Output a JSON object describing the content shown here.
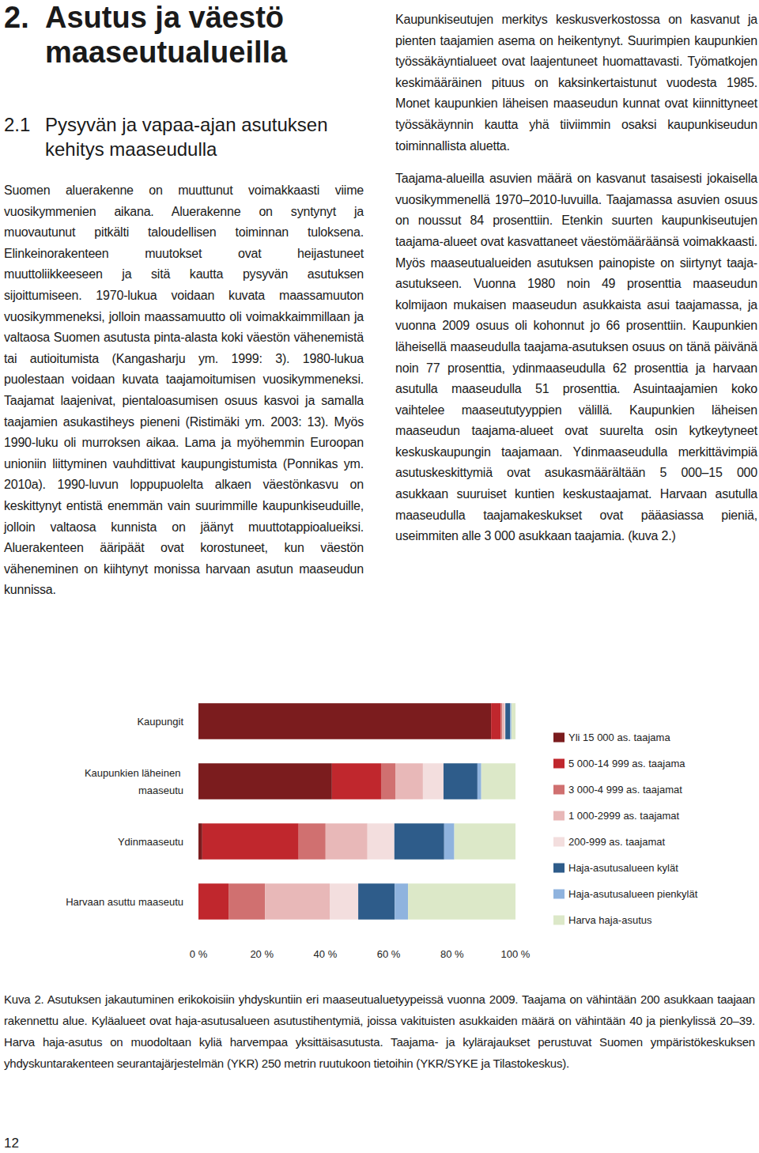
{
  "heading": {
    "number": "2.",
    "title": "Asutus ja väestö maaseutualueilla"
  },
  "section": {
    "number": "2.1",
    "title": "Pysyvän ja vapaa-ajan asutuksen kehitys maaseudulla"
  },
  "columns": [
    [
      "Suomen aluerakenne on muuttunut voimakkaasti viime vuosikymmenien aikana. Aluerakenne on syntynyt ja muovautunut pitkälti taloudellisen toiminnan tuloksena. Elinkeinorakenteen muutokset ovat heijastuneet muuttoliikkeeseen ja sitä kautta pysyvän asutuksen sijoittumiseen. 1970-lukua voidaan kuvata maassamuuton vuosikymmeneksi, jolloin maassamuutto oli voimakkaimmillaan ja valtaosa Suomen asutusta pinta-alasta koki väestön vähenemistä tai autioitumista (Kangasharju ym. 1999: 3). 1980-lukua puolestaan voidaan kuvata taajamoitumisen vuosikymmeneksi. Taajamat laajenivat, pientaloasumisen osuus kasvoi ja samalla taajamien asukastiheys pieneni (Ristimäki ym. 2003: 13). Myös 1990-luku oli murroksen aikaa. Lama ja myöhemmin Euroopan unioniin liittyminen vauhdittivat kaupungistumista (Ponnikas ym. 2010a). 1990-luvun loppupuolelta alkaen väestönkasvu on keskittynyt entistä enemmän vain suurimmille kaupunkiseuduille, jolloin valtaosa kunnista on jäänyt muuttotappioalueiksi. Aluerakenteen ääripäät ovat korostuneet, kun väestön väheneminen on kiihtynyt monissa harvaan asutun maaseudun kunnissa."
    ],
    [
      "Kaupunkiseutujen merkitys keskusverkostossa on kasvanut ja pienten taajamien asema on heikentynyt. Suurimpien kaupunkien työssäkäyntialueet ovat laajentuneet huomattavasti. Työmatkojen keskimääräinen pituus on kaksinkertaistunut vuodesta 1985. Monet kaupunkien läheisen maaseudun kunnat ovat kiinnittyneet työssäkäynnin kautta yhä tiiviimmin osaksi kaupunkiseudun toiminnallista aluetta.",
      "Taajama-alueilla asuvien määrä on kasvanut tasaisesti jokaisella vuosikymmenellä 1970–2010-luvuilla. Taajamassa asuvien osuus on noussut 84 prosenttiin. Etenkin suurten kaupunkiseutujen taajama-alueet ovat kasvattaneet väestömääräänsä voimakkaasti. Myös maaseutualueiden asutuksen painopiste on siirtynyt taaja-asutukseen. Vuonna 1980 noin 49 prosenttia maaseudun kolmijaon mukaisen maaseudun asukkaista asui taajamassa, ja vuonna 2009 osuus oli kohonnut jo 66 prosenttiin. Kaupunkien läheisellä maaseudulla taajama-asutuksen osuus on tänä päivänä noin 77 prosenttia, ydinmaaseudulla 62 prosenttia ja harvaan asutulla maaseudulla 51 prosenttia. Asuintaajamien koko vaihtelee maaseututyyppien välillä. Kaupunkien läheisen maaseudun taajama-alueet ovat suurelta osin kytkeytyneet keskuskaupungin taajamaan. Ydinmaaseudulla merkittävimpiä asutuskeskittymiä ovat asukasmäärältään 5 000–15 000 asukkaan suuruiset kuntien keskustaajamat. Harvaan asutulla maaseudulla taajamakeskukset ovat pääasiassa pieniä, useimmiten alle 3 000 asukkaan taajamia. (kuva 2.)"
    ]
  ],
  "chart_data": {
    "type": "bar",
    "orientation": "horizontal",
    "stacked": true,
    "grid": false,
    "legend": "right",
    "categories": [
      "Kaupungit",
      "Kaupunkien läheinen maaseutu",
      "Ydinmaaseutu",
      "Harvaan asuttu maaseutu"
    ],
    "xlim": [
      0,
      100
    ],
    "xticks": [
      {
        "value": 0,
        "label": "0 %"
      },
      {
        "value": 20,
        "label": "20 %"
      },
      {
        "value": 40,
        "label": "40 %"
      },
      {
        "value": 60,
        "label": "60 %"
      },
      {
        "value": 80,
        "label": "80 %"
      },
      {
        "value": 100,
        "label": "100 %"
      }
    ],
    "series": [
      {
        "name": "Yli 15 000 as. taajama",
        "color": "#7b1c1e",
        "values": [
          92.3,
          42.1,
          1.2,
          0
        ]
      },
      {
        "name": "5 000-14 999 as. taajama",
        "color": "#c0272d",
        "values": [
          3.0,
          15.5,
          30.4,
          9.5
        ]
      },
      {
        "name": "3 000-4 999 as. taajamat",
        "color": "#d07070",
        "values": [
          0.5,
          4.5,
          8.5,
          11.5
        ]
      },
      {
        "name": "1 000-2999 as. taajamat",
        "color": "#e8b8b8",
        "values": [
          0.7,
          8.7,
          13.2,
          20.4
        ]
      },
      {
        "name": "200-999 as. taajamat",
        "color": "#f3dede",
        "values": [
          0.3,
          6.5,
          8.5,
          9.0
        ]
      },
      {
        "name": "Haja-asutusalueen kylät",
        "color": "#2e5c8a",
        "values": [
          1.5,
          10.7,
          15.7,
          11.5
        ]
      },
      {
        "name": "Haja-asutusalueen pienkylät",
        "color": "#8fb3de",
        "values": [
          0.4,
          1.2,
          3.2,
          4.2
        ]
      },
      {
        "name": "Harva haja-asutus",
        "color": "#dce8c8",
        "values": [
          1.3,
          10.8,
          19.3,
          33.9
        ]
      }
    ]
  },
  "caption": "Kuva 2. Asutuksen jakautuminen erikokoisiin yhdyskuntiin eri maaseutualuetyypeissä vuonna 2009. Taajama on vähintään 200 asukkaan taajaan rakennettu alue. Kyläalueet ovat haja-asutusalueen asutustihentymiä, joissa vakituisten asukkaiden määrä on vähintään 40 ja pienkylissä 20–39. Harva haja-asutus on muodoltaan kyliä harvempaa yksittäisasutusta. Taajama- ja kylärajaukset perustuvat Suomen ympäristökeskuksen yhdyskuntarakenteen seurantajärjestelmän (YKR) 250 metrin ruutukoon tietoihin (YKR/SYKE ja Tilastokeskus).",
  "page_number": "12"
}
